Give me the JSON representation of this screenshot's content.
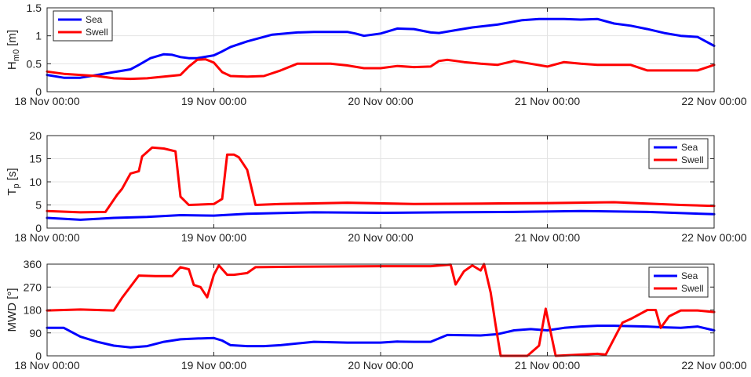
{
  "chart_data": [
    {
      "type": "line",
      "ylabel": "H",
      "ylabel_sub": "m0",
      "ylabel_unit": " [m]",
      "ylim": [
        0,
        1.5
      ],
      "yticks": [
        0,
        0.5,
        1,
        1.5
      ],
      "ytick_labels": [
        "0",
        "0.5",
        "1",
        "1.5"
      ],
      "xlim": [
        0,
        4
      ],
      "xticks": [
        0,
        1,
        2,
        3,
        4
      ],
      "xtick_labels": [
        "18 Nov 00:00",
        "19 Nov 00:00",
        "20 Nov 00:00",
        "21 Nov 00:00",
        "22 Nov 00:00"
      ],
      "grid": true,
      "legend": "top-left",
      "series": [
        {
          "name": "Sea",
          "color": "#0000ff",
          "x": [
            0,
            0.1,
            0.2,
            0.3,
            0.4,
            0.5,
            0.55,
            0.62,
            0.7,
            0.75,
            0.8,
            0.85,
            0.9,
            1.0,
            1.05,
            1.1,
            1.2,
            1.35,
            1.5,
            1.6,
            1.7,
            1.8,
            1.85,
            1.9,
            2.0,
            2.1,
            2.2,
            2.3,
            2.35,
            2.45,
            2.55,
            2.7,
            2.85,
            2.95,
            3.1,
            3.2,
            3.3,
            3.4,
            3.5,
            3.6,
            3.7,
            3.8,
            3.9,
            3.95,
            4.0
          ],
          "values": [
            0.3,
            0.25,
            0.25,
            0.3,
            0.35,
            0.4,
            0.48,
            0.6,
            0.67,
            0.66,
            0.62,
            0.6,
            0.6,
            0.65,
            0.72,
            0.8,
            0.9,
            1.02,
            1.06,
            1.07,
            1.07,
            1.07,
            1.04,
            1.0,
            1.04,
            1.13,
            1.12,
            1.06,
            1.05,
            1.1,
            1.15,
            1.2,
            1.28,
            1.3,
            1.3,
            1.29,
            1.3,
            1.22,
            1.18,
            1.12,
            1.05,
            1.0,
            0.98,
            0.9,
            0.82
          ]
        },
        {
          "name": "Swell",
          "color": "#ff0000",
          "x": [
            0,
            0.1,
            0.2,
            0.3,
            0.4,
            0.5,
            0.6,
            0.7,
            0.8,
            0.85,
            0.9,
            0.95,
            1.0,
            1.05,
            1.1,
            1.2,
            1.3,
            1.4,
            1.5,
            1.6,
            1.7,
            1.8,
            1.9,
            2.0,
            2.1,
            2.2,
            2.3,
            2.35,
            2.4,
            2.5,
            2.6,
            2.7,
            2.8,
            2.9,
            3.0,
            3.1,
            3.2,
            3.3,
            3.4,
            3.5,
            3.6,
            3.7,
            3.8,
            3.9,
            4.0
          ],
          "values": [
            0.36,
            0.32,
            0.3,
            0.28,
            0.24,
            0.23,
            0.24,
            0.27,
            0.3,
            0.45,
            0.57,
            0.58,
            0.52,
            0.35,
            0.28,
            0.27,
            0.28,
            0.38,
            0.5,
            0.5,
            0.5,
            0.47,
            0.42,
            0.42,
            0.46,
            0.44,
            0.45,
            0.55,
            0.57,
            0.53,
            0.5,
            0.48,
            0.55,
            0.5,
            0.45,
            0.53,
            0.5,
            0.48,
            0.48,
            0.48,
            0.38,
            0.38,
            0.38,
            0.38,
            0.48
          ]
        }
      ]
    },
    {
      "type": "line",
      "ylabel": "T",
      "ylabel_sub": "p",
      "ylabel_unit": " [s]",
      "ylim": [
        0,
        20
      ],
      "yticks": [
        0,
        5,
        10,
        15,
        20
      ],
      "ytick_labels": [
        "0",
        "5",
        "10",
        "15",
        "20"
      ],
      "xlim": [
        0,
        4
      ],
      "xticks": [
        0,
        1,
        2,
        3,
        4
      ],
      "xtick_labels": [
        "18 Nov 00:00",
        "19 Nov 00:00",
        "20 Nov 00:00",
        "21 Nov 00:00",
        "22 Nov 00:00"
      ],
      "grid": true,
      "legend": "top-right",
      "series": [
        {
          "name": "Sea",
          "color": "#0000ff",
          "x": [
            0,
            0.2,
            0.4,
            0.6,
            0.8,
            1.0,
            1.2,
            1.6,
            2.0,
            2.4,
            2.8,
            3.2,
            3.6,
            4.0
          ],
          "values": [
            2.2,
            1.8,
            2.2,
            2.4,
            2.8,
            2.7,
            3.1,
            3.4,
            3.3,
            3.4,
            3.5,
            3.7,
            3.5,
            3.0
          ]
        },
        {
          "name": "Swell",
          "color": "#ff0000",
          "x": [
            0,
            0.2,
            0.35,
            0.42,
            0.45,
            0.5,
            0.55,
            0.57,
            0.63,
            0.7,
            0.77,
            0.8,
            0.85,
            1.0,
            1.05,
            1.08,
            1.12,
            1.15,
            1.2,
            1.25,
            1.4,
            1.8,
            2.2,
            2.6,
            3.0,
            3.4,
            3.8,
            4.0
          ],
          "values": [
            3.7,
            3.4,
            3.5,
            7.2,
            8.5,
            11.8,
            12.3,
            15.5,
            17.4,
            17.2,
            16.6,
            6.8,
            5.0,
            5.2,
            6.3,
            15.9,
            15.9,
            15.3,
            12.6,
            5.0,
            5.2,
            5.5,
            5.2,
            5.3,
            5.4,
            5.6,
            5.0,
            4.8
          ]
        }
      ]
    },
    {
      "type": "line",
      "ylabel": "MWD [°]",
      "ylim": [
        0,
        360
      ],
      "yticks": [
        0,
        90,
        180,
        270,
        360
      ],
      "ytick_labels": [
        "0",
        "90",
        "180",
        "270",
        "360"
      ],
      "xlim": [
        0,
        4
      ],
      "xticks": [
        0,
        1,
        2,
        3,
        4
      ],
      "xtick_labels": [
        "18 Nov 00:00",
        "19 Nov 00:00",
        "20 Nov 00:00",
        "21 Nov 00:00",
        "22 Nov 00:00"
      ],
      "grid": true,
      "legend": "top-right",
      "series": [
        {
          "name": "Sea",
          "color": "#0000ff",
          "x": [
            0,
            0.1,
            0.2,
            0.3,
            0.4,
            0.5,
            0.6,
            0.7,
            0.8,
            0.9,
            1.0,
            1.05,
            1.1,
            1.2,
            1.3,
            1.4,
            1.6,
            1.8,
            2.0,
            2.1,
            2.2,
            2.3,
            2.4,
            2.6,
            2.7,
            2.8,
            2.9,
            3.0,
            3.1,
            3.2,
            3.3,
            3.4,
            3.6,
            3.7,
            3.8,
            3.9,
            4.0
          ],
          "values": [
            110,
            110,
            75,
            55,
            40,
            33,
            38,
            55,
            65,
            68,
            70,
            60,
            42,
            38,
            38,
            42,
            55,
            52,
            52,
            56,
            55,
            55,
            82,
            80,
            85,
            100,
            105,
            100,
            110,
            115,
            118,
            118,
            115,
            112,
            110,
            115,
            100
          ]
        },
        {
          "name": "Swell",
          "color": "#ff0000",
          "x": [
            0,
            0.2,
            0.4,
            0.45,
            0.55,
            0.65,
            0.75,
            0.8,
            0.85,
            0.88,
            0.92,
            0.96,
            1.0,
            1.03,
            1.08,
            1.12,
            1.2,
            1.25,
            1.5,
            2.0,
            2.3,
            2.42,
            2.45,
            2.5,
            2.55,
            2.6,
            2.62,
            2.66,
            2.69,
            2.72,
            2.88,
            2.95,
            2.99,
            3.05,
            3.3,
            3.35,
            3.45,
            3.5,
            3.6,
            3.65,
            3.68,
            3.73,
            3.8,
            3.9,
            4.0
          ],
          "values": [
            178,
            182,
            178,
            228,
            315,
            313,
            313,
            348,
            340,
            278,
            270,
            230,
            318,
            355,
            318,
            318,
            325,
            348,
            350,
            352,
            352,
            358,
            280,
            332,
            355,
            335,
            360,
            248,
            120,
            0,
            0,
            40,
            185,
            0,
            8,
            5,
            130,
            145,
            180,
            180,
            110,
            155,
            178,
            178,
            172
          ]
        }
      ]
    }
  ]
}
